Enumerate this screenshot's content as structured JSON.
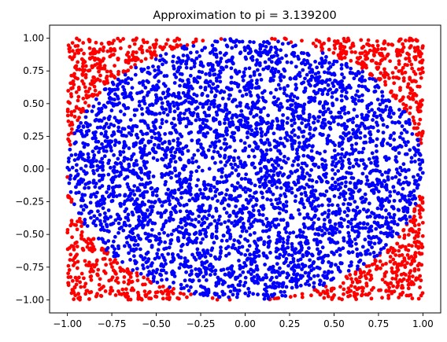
{
  "chart_data": {
    "type": "scatter",
    "title": "Approximation to pi = 3.139200",
    "xlabel": "",
    "ylabel": "",
    "xlim": [
      -1.1,
      1.1
    ],
    "ylim": [
      -1.1,
      1.1
    ],
    "x_ticks": [
      -1.0,
      -0.75,
      -0.5,
      -0.25,
      0.0,
      0.25,
      0.5,
      0.75,
      1.0
    ],
    "x_tick_labels": [
      "−1.00",
      "−0.75",
      "−0.50",
      "−0.25",
      "0.00",
      "0.25",
      "0.50",
      "0.75",
      "1.00"
    ],
    "y_ticks": [
      1.0,
      0.75,
      0.5,
      0.25,
      0.0,
      -0.25,
      -0.5,
      -0.75,
      -1.0
    ],
    "y_tick_labels": [
      "1.00",
      "0.75",
      "0.50",
      "0.25",
      "0.00",
      "−0.25",
      "−0.50",
      "−0.75",
      "−1.00"
    ],
    "grid": false,
    "legend": "none",
    "series": [
      {
        "color": "#ff0000",
        "rule": "x^2 + y^2 > 1",
        "point_count": 1076
      },
      {
        "color": "#0000ff",
        "rule": "x^2 + y^2 <= 1",
        "point_count": 3924
      }
    ],
    "total_points": 5000,
    "pi_estimate": 3.1392
  }
}
